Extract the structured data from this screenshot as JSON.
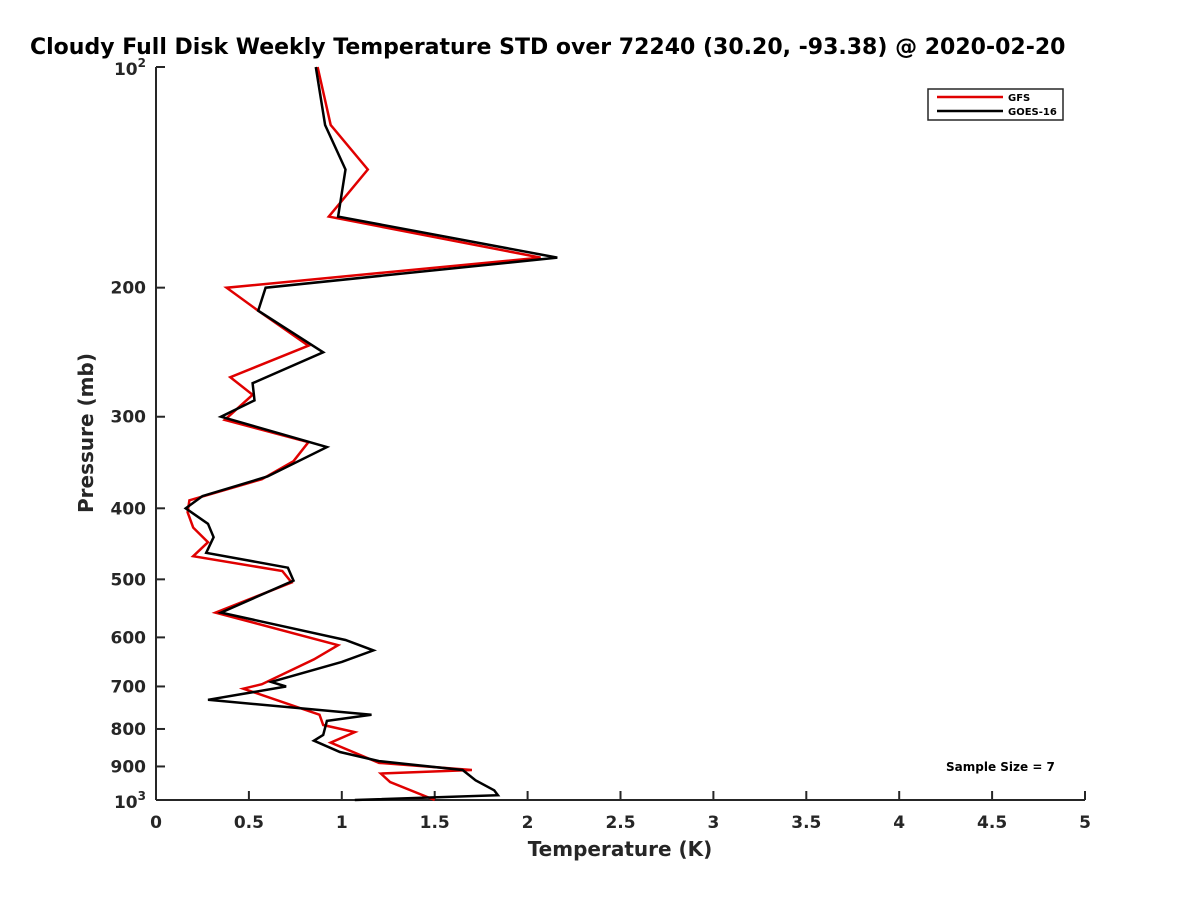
{
  "chart_data": {
    "type": "line",
    "title": "Cloudy Full Disk Weekly Temperature STD over 72240 (30.20, -93.38) @ 2020-02-20",
    "xlabel": "Temperature (K)",
    "ylabel": "Pressure (mb)",
    "xlim": [
      0,
      5
    ],
    "ylim": [
      100,
      1000
    ],
    "yscale": "log",
    "y_reversed": true,
    "grid": false,
    "legend_position": "top-right",
    "x_ticks": [
      {
        "value": 0,
        "label": "0"
      },
      {
        "value": 0.5,
        "label": "0.5"
      },
      {
        "value": 1,
        "label": "1"
      },
      {
        "value": 1.5,
        "label": "1.5"
      },
      {
        "value": 2,
        "label": "2"
      },
      {
        "value": 2.5,
        "label": "2.5"
      },
      {
        "value": 3,
        "label": "3"
      },
      {
        "value": 3.5,
        "label": "3.5"
      },
      {
        "value": 4,
        "label": "4"
      },
      {
        "value": 4.5,
        "label": "4.5"
      },
      {
        "value": 5,
        "label": "5"
      }
    ],
    "y_ticks": [
      {
        "value": 100,
        "base": "10",
        "exp": "2"
      },
      {
        "value": 200,
        "label": "200"
      },
      {
        "value": 300,
        "label": "300"
      },
      {
        "value": 400,
        "label": "400"
      },
      {
        "value": 500,
        "label": "500"
      },
      {
        "value": 600,
        "label": "600"
      },
      {
        "value": 700,
        "label": "700"
      },
      {
        "value": 800,
        "label": "800"
      },
      {
        "value": 900,
        "label": "900"
      },
      {
        "value": 1000,
        "base": "10",
        "exp": "3"
      }
    ],
    "annotation": "Sample Size = 7",
    "series": [
      {
        "name": "GFS",
        "color": "#e00000",
        "points": [
          {
            "x": 0.87,
            "p": 100
          },
          {
            "x": 0.94,
            "p": 120
          },
          {
            "x": 1.14,
            "p": 138
          },
          {
            "x": 0.93,
            "p": 160
          },
          {
            "x": 2.07,
            "p": 182
          },
          {
            "x": 0.38,
            "p": 200
          },
          {
            "x": 0.55,
            "p": 215
          },
          {
            "x": 0.82,
            "p": 240
          },
          {
            "x": 0.4,
            "p": 265
          },
          {
            "x": 0.52,
            "p": 280
          },
          {
            "x": 0.37,
            "p": 303
          },
          {
            "x": 0.82,
            "p": 325
          },
          {
            "x": 0.74,
            "p": 345
          },
          {
            "x": 0.57,
            "p": 365
          },
          {
            "x": 0.18,
            "p": 390
          },
          {
            "x": 0.17,
            "p": 405
          },
          {
            "x": 0.2,
            "p": 425
          },
          {
            "x": 0.28,
            "p": 445
          },
          {
            "x": 0.2,
            "p": 465
          },
          {
            "x": 0.68,
            "p": 487
          },
          {
            "x": 0.73,
            "p": 505
          },
          {
            "x": 0.32,
            "p": 555
          },
          {
            "x": 0.98,
            "p": 615
          },
          {
            "x": 0.85,
            "p": 643
          },
          {
            "x": 0.57,
            "p": 695
          },
          {
            "x": 0.47,
            "p": 705
          },
          {
            "x": 0.88,
            "p": 765
          },
          {
            "x": 0.9,
            "p": 790
          },
          {
            "x": 1.07,
            "p": 808
          },
          {
            "x": 0.94,
            "p": 835
          },
          {
            "x": 1.2,
            "p": 890
          },
          {
            "x": 1.7,
            "p": 910
          },
          {
            "x": 1.21,
            "p": 920
          },
          {
            "x": 1.26,
            "p": 945
          },
          {
            "x": 1.5,
            "p": 1000
          }
        ]
      },
      {
        "name": "GOES-16",
        "color": "#000000",
        "points": [
          {
            "x": 0.86,
            "p": 100
          },
          {
            "x": 0.91,
            "p": 120
          },
          {
            "x": 1.02,
            "p": 138
          },
          {
            "x": 0.98,
            "p": 160
          },
          {
            "x": 2.16,
            "p": 182
          },
          {
            "x": 0.59,
            "p": 200
          },
          {
            "x": 0.55,
            "p": 215
          },
          {
            "x": 0.9,
            "p": 245
          },
          {
            "x": 0.52,
            "p": 270
          },
          {
            "x": 0.53,
            "p": 285
          },
          {
            "x": 0.35,
            "p": 300
          },
          {
            "x": 0.92,
            "p": 330
          },
          {
            "x": 0.6,
            "p": 362
          },
          {
            "x": 0.25,
            "p": 385
          },
          {
            "x": 0.16,
            "p": 400
          },
          {
            "x": 0.28,
            "p": 420
          },
          {
            "x": 0.31,
            "p": 438
          },
          {
            "x": 0.27,
            "p": 460
          },
          {
            "x": 0.71,
            "p": 482
          },
          {
            "x": 0.74,
            "p": 502
          },
          {
            "x": 0.35,
            "p": 555
          },
          {
            "x": 1.02,
            "p": 605
          },
          {
            "x": 1.17,
            "p": 625
          },
          {
            "x": 1.0,
            "p": 648
          },
          {
            "x": 0.62,
            "p": 690
          },
          {
            "x": 0.7,
            "p": 700
          },
          {
            "x": 0.28,
            "p": 730
          },
          {
            "x": 1.16,
            "p": 765
          },
          {
            "x": 0.92,
            "p": 780
          },
          {
            "x": 0.9,
            "p": 815
          },
          {
            "x": 0.85,
            "p": 830
          },
          {
            "x": 0.99,
            "p": 860
          },
          {
            "x": 1.2,
            "p": 885
          },
          {
            "x": 1.65,
            "p": 910
          },
          {
            "x": 1.72,
            "p": 940
          },
          {
            "x": 1.82,
            "p": 970
          },
          {
            "x": 1.84,
            "p": 985
          },
          {
            "x": 1.07,
            "p": 1000
          }
        ]
      }
    ]
  }
}
